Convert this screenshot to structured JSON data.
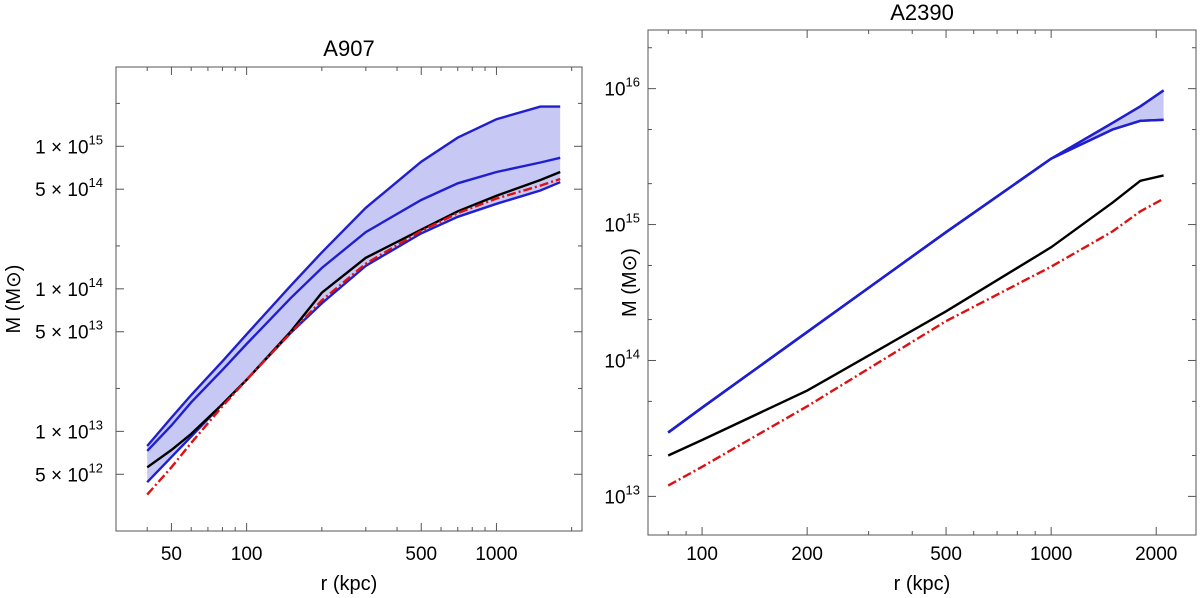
{
  "chart_data": [
    {
      "type": "line",
      "title": "A907",
      "xlabel": "r (kpc)",
      "ylabel": "M (M⊙)",
      "xscale": "log",
      "yscale": "log",
      "xlim": [
        30,
        2200
      ],
      "ylim": [
        2000000000000.0,
        3600000000000000.0
      ],
      "grid": false,
      "x_ticks": [
        {
          "value": 50,
          "label": "50"
        },
        {
          "value": 100,
          "label": "100"
        },
        {
          "value": 500,
          "label": "500"
        },
        {
          "value": 1000,
          "label": "1000"
        }
      ],
      "y_ticks": [
        {
          "value": 5000000000000.0,
          "label": "5 × 10",
          "exp": "12"
        },
        {
          "value": 10000000000000.0,
          "label": "1 × 10",
          "exp": "13"
        },
        {
          "value": 50000000000000.0,
          "label": "5 × 10",
          "exp": "13"
        },
        {
          "value": 100000000000000.0,
          "label": "1 × 10",
          "exp": "14"
        },
        {
          "value": 500000000000000.0,
          "label": "5 × 10",
          "exp": "14"
        },
        {
          "value": 1000000000000000.0,
          "label": "1 × 10",
          "exp": "15"
        }
      ],
      "band": {
        "color": "#c8c8f4",
        "edge_color": "#1f1fd0",
        "x": [
          40,
          50,
          60,
          80,
          100,
          150,
          200,
          300,
          500,
          700,
          1000,
          1500,
          1800
        ],
        "upper": [
          7900000000000.0,
          12500000000000.0,
          18000000000000.0,
          31000000000000.0,
          48000000000000.0,
          105000000000000.0,
          180000000000000.0,
          370000000000000.0,
          780000000000000.0,
          1150000000000000.0,
          1550000000000000.0,
          1900000000000000.0,
          1900000000000000.0
        ],
        "lower": [
          4400000000000.0,
          6600000000000.0,
          9200000000000.0,
          15500000000000.0,
          23000000000000.0,
          49000000000000.0,
          79000000000000.0,
          145000000000000.0,
          245000000000000.0,
          320000000000000.0,
          395000000000000.0,
          490000000000000.0,
          560000000000000.0
        ]
      },
      "series": [
        {
          "color": "#1f1fd0",
          "dash": "solid",
          "x": [
            40,
            50,
            60,
            80,
            100,
            150,
            200,
            300,
            500,
            700,
            1000,
            1500,
            1800
          ],
          "values": [
            7300000000000.0,
            11000000000000.0,
            16000000000000.0,
            27000000000000.0,
            41000000000000.0,
            86000000000000.0,
            140000000000000.0,
            250000000000000.0,
            420000000000000.0,
            550000000000000.0,
            660000000000000.0,
            770000000000000.0,
            830000000000000.0
          ]
        },
        {
          "color": "#000000",
          "dash": "solid",
          "x": [
            40,
            50,
            60,
            80,
            100,
            150,
            200,
            300,
            500,
            700,
            1000,
            1500,
            1800
          ],
          "values": [
            5600000000000.0,
            7400000000000.0,
            9600000000000.0,
            15500000000000.0,
            23000000000000.0,
            50000000000000.0,
            94000000000000.0,
            165000000000000.0,
            260000000000000.0,
            350000000000000.0,
            450000000000000.0,
            580000000000000.0,
            660000000000000.0
          ]
        },
        {
          "color": "#dd1111",
          "dash": "dashdot",
          "x": [
            40,
            50,
            60,
            80,
            100,
            150,
            200,
            300,
            500,
            700,
            1000,
            1500,
            1800
          ],
          "values": [
            3600000000000.0,
            5600000000000.0,
            8300000000000.0,
            15000000000000.0,
            23000000000000.0,
            49000000000000.0,
            83000000000000.0,
            150000000000000.0,
            255000000000000.0,
            340000000000000.0,
            430000000000000.0,
            530000000000000.0,
            590000000000000.0
          ]
        }
      ]
    },
    {
      "type": "line",
      "title": "A2390",
      "xlabel": "r (kpc)",
      "ylabel": "M (M⊙)",
      "xscale": "log",
      "yscale": "log",
      "xlim": [
        70,
        2600
      ],
      "ylim": [
        5200000000000.0,
        2.7e+16
      ],
      "grid": false,
      "x_ticks": [
        {
          "value": 100,
          "label": "100"
        },
        {
          "value": 200,
          "label": "200"
        },
        {
          "value": 500,
          "label": "500"
        },
        {
          "value": 1000,
          "label": "1000"
        },
        {
          "value": 2000,
          "label": "2000"
        }
      ],
      "y_ticks": [
        {
          "value": 10000000000000.0,
          "label": "10",
          "exp": "13"
        },
        {
          "value": 100000000000000.0,
          "label": "10",
          "exp": "14"
        },
        {
          "value": 1000000000000000.0,
          "label": "10",
          "exp": "15"
        },
        {
          "value": 1e+16,
          "label": "10",
          "exp": "16"
        }
      ],
      "band": {
        "color": "#c8c8f4",
        "edge_color": "#1f1fd0",
        "x": [
          80,
          100,
          200,
          500,
          1000,
          1500,
          1800,
          2100
        ],
        "upper": [
          29500000000000.0,
          45000000000000.0,
          162000000000000.0,
          880000000000000.0,
          3050000000000000.0,
          5600000000000000.0,
          7400000000000000.0,
          9700000000000000.0
        ],
        "lower": [
          29500000000000.0,
          45000000000000.0,
          162000000000000.0,
          880000000000000.0,
          3050000000000000.0,
          5000000000000000.0,
          5800000000000000.0,
          5900000000000000.0
        ]
      },
      "series": [
        {
          "color": "#1f1fd0",
          "dash": "solid",
          "x": [
            80,
            100,
            200,
            500,
            1000,
            1500,
            1800,
            2100
          ],
          "values": [
            29500000000000.0,
            45000000000000.0,
            162000000000000.0,
            880000000000000.0,
            3050000000000000.0,
            5600000000000000.0,
            7400000000000000.0,
            9700000000000000.0
          ]
        },
        {
          "color": "#1f1fd0",
          "dash": "solid",
          "x": [
            80,
            100,
            200,
            500,
            1000,
            1500,
            1800,
            2100
          ],
          "values": [
            29500000000000.0,
            45000000000000.0,
            162000000000000.0,
            880000000000000.0,
            3050000000000000.0,
            5000000000000000.0,
            5800000000000000.0,
            5900000000000000.0
          ]
        },
        {
          "color": "#000000",
          "dash": "solid",
          "x": [
            80,
            100,
            200,
            500,
            1000,
            1500,
            1800,
            2100
          ],
          "values": [
            20000000000000.0,
            26000000000000.0,
            60000000000000.0,
            230000000000000.0,
            680000000000000.0,
            1450000000000000.0,
            2100000000000000.0,
            2300000000000000.0
          ]
        },
        {
          "color": "#dd1111",
          "dash": "dashdot",
          "x": [
            80,
            100,
            200,
            500,
            1000,
            1500,
            1800,
            2100
          ],
          "values": [
            12000000000000.0,
            16500000000000.0,
            46000000000000.0,
            195000000000000.0,
            490000000000000.0,
            890000000000000.0,
            1250000000000000.0,
            1550000000000000.0
          ]
        }
      ]
    }
  ]
}
